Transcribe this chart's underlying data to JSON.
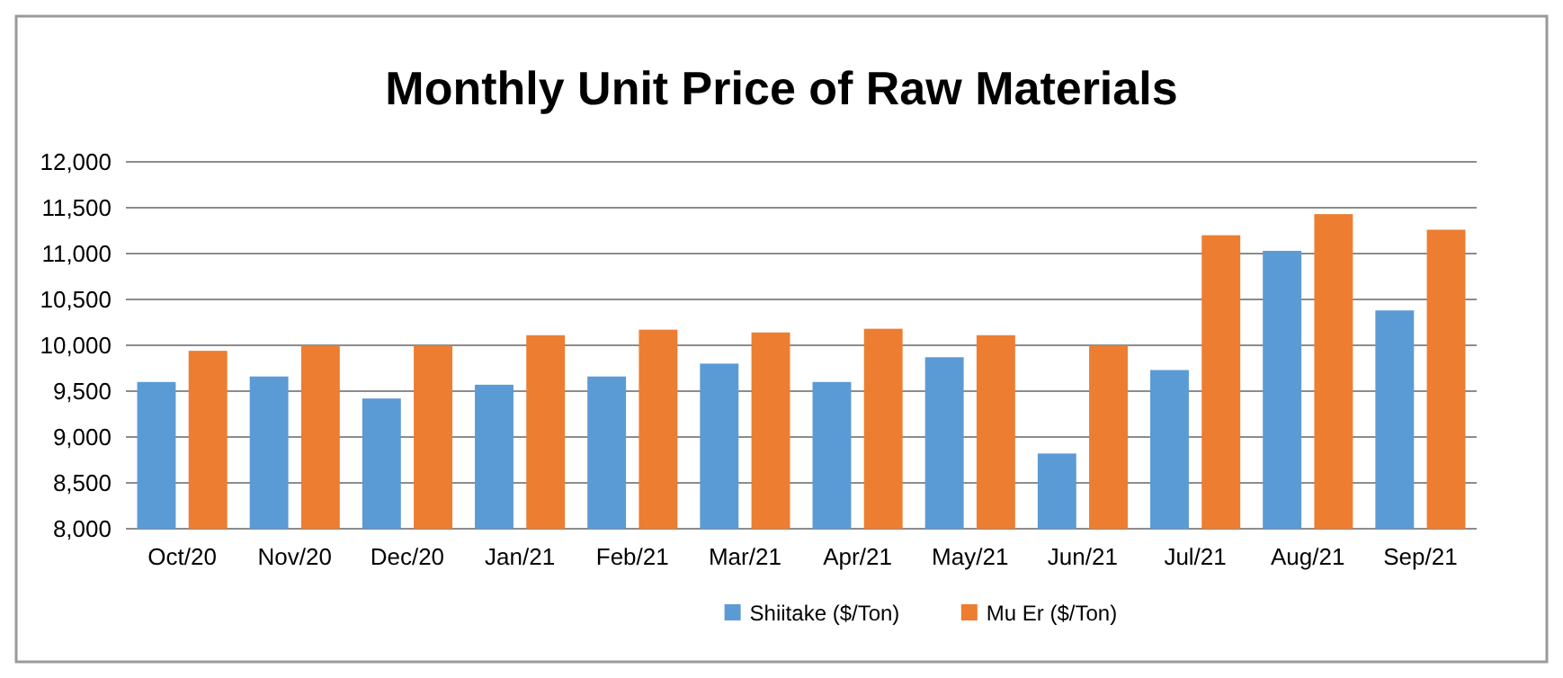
{
  "chart_data": {
    "type": "bar",
    "title": "Monthly Unit Price of Raw Materials",
    "categories": [
      "Oct/20",
      "Nov/20",
      "Dec/20",
      "Jan/21",
      "Feb/21",
      "Mar/21",
      "Apr/21",
      "May/21",
      "Jun/21",
      "Jul/21",
      "Aug/21",
      "Sep/21"
    ],
    "series": [
      {
        "name": "Shiitake ($/Ton)",
        "color": "#5b9bd5",
        "values": [
          9600,
          9660,
          9420,
          9570,
          9660,
          9800,
          9600,
          9870,
          8820,
          9730,
          11030,
          10380
        ]
      },
      {
        "name": "Mu Er ($/Ton)",
        "color": "#ed7d31",
        "values": [
          9940,
          10000,
          10000,
          10110,
          10170,
          10140,
          10180,
          10110,
          10000,
          11200,
          11430,
          11260
        ]
      }
    ],
    "ylim": [
      8000,
      12000
    ],
    "yticks": [
      {
        "value": 8000,
        "label": "8,000"
      },
      {
        "value": 8500,
        "label": "8,500"
      },
      {
        "value": 9000,
        "label": "9,000"
      },
      {
        "value": 9500,
        "label": "9,500"
      },
      {
        "value": 10000,
        "label": "10,000"
      },
      {
        "value": 10500,
        "label": "10,500"
      },
      {
        "value": 11000,
        "label": "11,000"
      },
      {
        "value": 11500,
        "label": "11,500"
      },
      {
        "value": 12000,
        "label": "12,000"
      }
    ],
    "grid": "y",
    "legend": "bottom"
  }
}
